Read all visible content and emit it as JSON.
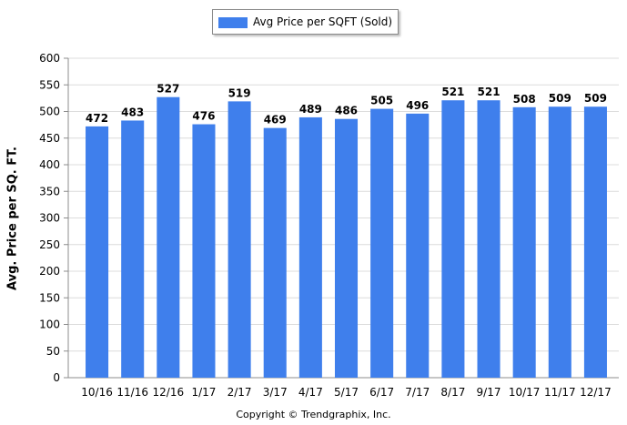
{
  "chart_data": {
    "type": "bar",
    "categories": [
      "10/16",
      "11/16",
      "12/16",
      "1/17",
      "2/17",
      "3/17",
      "4/17",
      "5/17",
      "6/17",
      "7/17",
      "8/17",
      "9/17",
      "10/17",
      "11/17",
      "12/17"
    ],
    "series": [
      {
        "name": "Avg Price per SQFT (Sold)",
        "values": [
          472,
          483,
          527,
          476,
          519,
          469,
          489,
          486,
          505,
          496,
          521,
          521,
          508,
          509,
          509
        ]
      }
    ],
    "ylabel": "Avg. Price per SQ. FT.",
    "xlabel": "",
    "ylim": [
      0,
      600
    ],
    "yticks": [
      0,
      50,
      100,
      150,
      200,
      250,
      300,
      350,
      400,
      450,
      500,
      550,
      600
    ],
    "grid": true,
    "legend": "top",
    "bar_color": "#3f7fec"
  },
  "copyright": "Copyright © Trendgraphix, Inc."
}
